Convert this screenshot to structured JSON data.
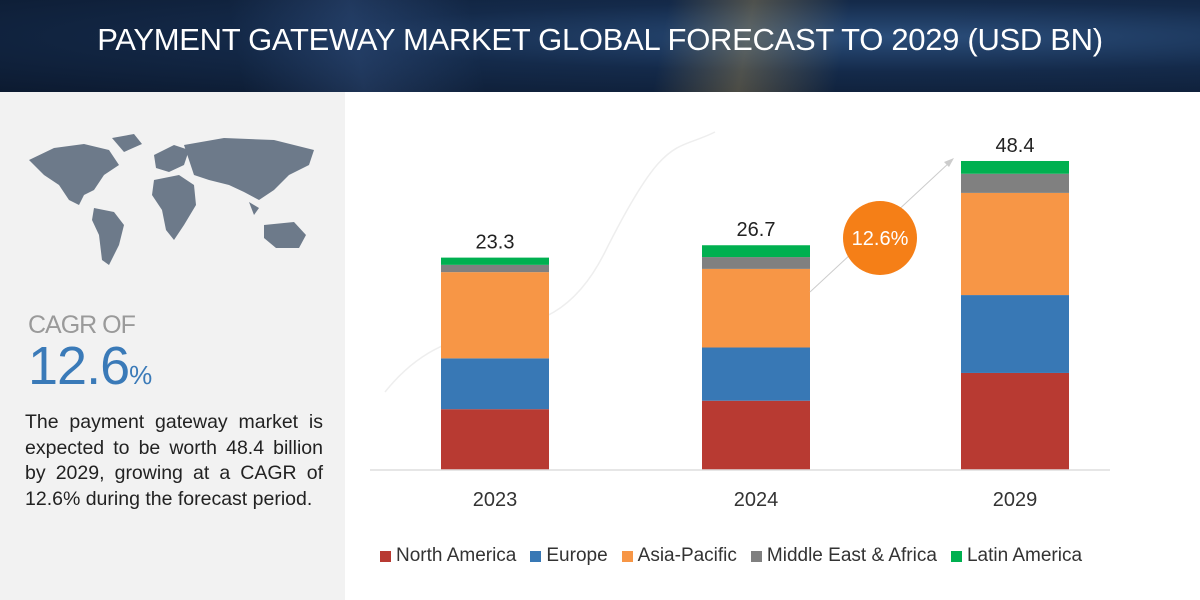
{
  "header": {
    "title": "PAYMENT GATEWAY MARKET GLOBAL FORECAST TO 2029 (USD BN)"
  },
  "left_panel": {
    "cagr_label": "CAGR OF",
    "cagr_value": "12.6",
    "cagr_unit": "%",
    "description": "The payment gateway market is expected to be worth 48.4 billion by 2029, growing at a CAGR of 12.6% during the forecast period.",
    "map_icon": "world-map-icon"
  },
  "chart_data": {
    "type": "bar",
    "stacked": true,
    "title": "PAYMENT GATEWAY MARKET GLOBAL FORECAST TO 2029 (USD BN)",
    "categories": [
      "2023",
      "2024",
      "2029"
    ],
    "totals": [
      "23.3",
      "26.7",
      "48.4"
    ],
    "series": [
      {
        "name": "North America",
        "color": "#b83a32",
        "values": [
          6.7,
          8.2,
          15.2
        ]
      },
      {
        "name": "Europe",
        "color": "#3878b5",
        "values": [
          5.6,
          6.3,
          12.2
        ]
      },
      {
        "name": "Asia-Pacific",
        "color": "#f79646",
        "values": [
          9.5,
          9.3,
          16.0
        ]
      },
      {
        "name": "Middle East & Africa",
        "color": "#808080",
        "values": [
          0.8,
          1.4,
          3.0
        ]
      },
      {
        "name": "Latin America",
        "color": "#00b050",
        "values": [
          0.8,
          1.4,
          2.0
        ]
      }
    ],
    "cagr_badge": {
      "text": "12.6%",
      "color": "#f57f17"
    },
    "grid": false,
    "legend": "bottom"
  }
}
